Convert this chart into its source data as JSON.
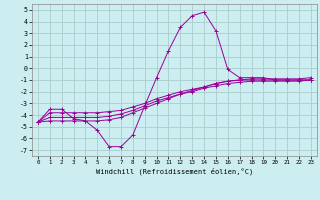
{
  "xlabel": "Windchill (Refroidissement éolien,°C)",
  "background_color": "#cceef0",
  "grid_color": "#aacccc",
  "line_color": "#990099",
  "xlim": [
    -0.5,
    23.5
  ],
  "ylim": [
    -7.5,
    5.5
  ],
  "xticks": [
    0,
    1,
    2,
    3,
    4,
    5,
    6,
    7,
    8,
    9,
    10,
    11,
    12,
    13,
    14,
    15,
    16,
    17,
    18,
    19,
    20,
    21,
    22,
    23
  ],
  "yticks": [
    -7,
    -6,
    -5,
    -4,
    -3,
    -2,
    -1,
    0,
    1,
    2,
    3,
    4,
    5
  ],
  "line1_x": [
    0,
    1,
    2,
    3,
    4,
    5,
    6,
    7,
    8,
    9,
    10,
    11,
    12,
    13,
    14,
    15,
    16,
    17,
    18,
    19,
    20,
    21,
    22,
    23
  ],
  "line1_y": [
    -4.6,
    -3.5,
    -3.5,
    -4.3,
    -4.5,
    -5.3,
    -6.7,
    -6.7,
    -5.7,
    -3.2,
    -0.8,
    1.5,
    3.5,
    4.5,
    4.8,
    3.2,
    -0.1,
    -0.8,
    -0.8,
    -0.8,
    -1.0,
    -1.0,
    -1.0,
    -1.0
  ],
  "line2_x": [
    0,
    1,
    2,
    3,
    4,
    5,
    6,
    7,
    8,
    9,
    10,
    11,
    12,
    13,
    14,
    15,
    16,
    17,
    18,
    19,
    20,
    21,
    22,
    23
  ],
  "line2_y": [
    -4.6,
    -3.8,
    -3.8,
    -3.8,
    -3.8,
    -3.8,
    -3.7,
    -3.6,
    -3.3,
    -3.0,
    -2.6,
    -2.3,
    -2.0,
    -1.8,
    -1.6,
    -1.3,
    -1.1,
    -1.0,
    -1.0,
    -1.0,
    -1.0,
    -1.0,
    -1.0,
    -1.0
  ],
  "line3_x": [
    0,
    1,
    2,
    3,
    4,
    5,
    6,
    7,
    8,
    9,
    10,
    11,
    12,
    13,
    14,
    15,
    16,
    17,
    18,
    19,
    20,
    21,
    22,
    23
  ],
  "line3_y": [
    -4.6,
    -4.2,
    -4.2,
    -4.2,
    -4.2,
    -4.2,
    -4.1,
    -3.9,
    -3.6,
    -3.2,
    -2.8,
    -2.5,
    -2.2,
    -2.0,
    -1.7,
    -1.5,
    -1.3,
    -1.2,
    -1.1,
    -1.1,
    -1.1,
    -1.1,
    -1.1,
    -1.0
  ],
  "line4_x": [
    0,
    1,
    2,
    3,
    4,
    5,
    6,
    7,
    8,
    9,
    10,
    11,
    12,
    13,
    14,
    15,
    16,
    17,
    18,
    19,
    20,
    21,
    22,
    23
  ],
  "line4_y": [
    -4.6,
    -4.5,
    -4.5,
    -4.5,
    -4.5,
    -4.5,
    -4.4,
    -4.2,
    -3.8,
    -3.4,
    -3.0,
    -2.6,
    -2.2,
    -1.9,
    -1.6,
    -1.3,
    -1.1,
    -1.0,
    -0.9,
    -0.9,
    -0.9,
    -0.9,
    -0.9,
    -0.8
  ]
}
